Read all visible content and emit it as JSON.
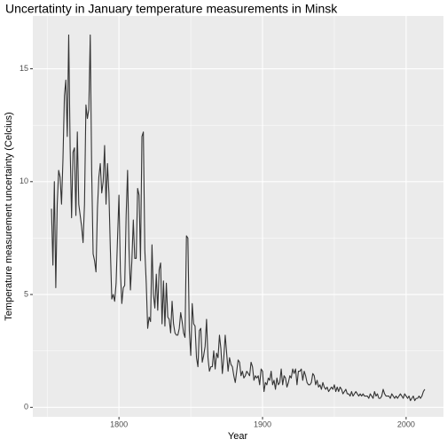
{
  "chart_data": {
    "type": "line",
    "title": "Uncertatinty in January temperature measurements in Minsk",
    "xlabel": "Year",
    "ylabel": "Temperature measurement uncertainty (Celcius)",
    "x": [
      1753,
      1754,
      1755,
      1756,
      1757,
      1758,
      1759,
      1760,
      1761,
      1762,
      1763,
      1764,
      1765,
      1766,
      1767,
      1768,
      1769,
      1770,
      1771,
      1772,
      1773,
      1774,
      1775,
      1776,
      1777,
      1778,
      1779,
      1780,
      1781,
      1782,
      1783,
      1784,
      1785,
      1786,
      1787,
      1788,
      1789,
      1790,
      1791,
      1792,
      1793,
      1794,
      1795,
      1796,
      1797,
      1798,
      1799,
      1800,
      1801,
      1802,
      1803,
      1804,
      1805,
      1806,
      1807,
      1808,
      1809,
      1810,
      1811,
      1812,
      1813,
      1814,
      1815,
      1816,
      1817,
      1818,
      1819,
      1820,
      1821,
      1822,
      1823,
      1824,
      1825,
      1826,
      1827,
      1828,
      1829,
      1830,
      1831,
      1832,
      1833,
      1834,
      1835,
      1836,
      1837,
      1838,
      1839,
      1840,
      1841,
      1842,
      1843,
      1844,
      1845,
      1846,
      1847,
      1848,
      1849,
      1850,
      1851,
      1852,
      1853,
      1854,
      1855,
      1856,
      1857,
      1858,
      1859,
      1860,
      1861,
      1862,
      1863,
      1864,
      1865,
      1866,
      1867,
      1868,
      1869,
      1870,
      1871,
      1872,
      1873,
      1874,
      1875,
      1876,
      1877,
      1878,
      1879,
      1880,
      1881,
      1882,
      1883,
      1884,
      1885,
      1886,
      1887,
      1888,
      1889,
      1890,
      1891,
      1892,
      1893,
      1894,
      1895,
      1896,
      1897,
      1898,
      1899,
      1900,
      1901,
      1902,
      1903,
      1904,
      1905,
      1906,
      1907,
      1908,
      1909,
      1910,
      1911,
      1912,
      1913,
      1914,
      1915,
      1916,
      1917,
      1918,
      1919,
      1920,
      1921,
      1922,
      1923,
      1924,
      1925,
      1926,
      1927,
      1928,
      1929,
      1930,
      1931,
      1932,
      1933,
      1934,
      1935,
      1936,
      1937,
      1938,
      1939,
      1940,
      1941,
      1942,
      1943,
      1944,
      1945,
      1946,
      1947,
      1948,
      1949,
      1950,
      1951,
      1952,
      1953,
      1954,
      1955,
      1956,
      1957,
      1958,
      1959,
      1960,
      1961,
      1962,
      1963,
      1964,
      1965,
      1966,
      1967,
      1968,
      1969,
      1970,
      1971,
      1972,
      1973,
      1974,
      1975,
      1976,
      1977,
      1978,
      1979,
      1980,
      1981,
      1982,
      1983,
      1984,
      1985,
      1986,
      1987,
      1988,
      1989,
      1990,
      1991,
      1992,
      1993,
      1994,
      1995,
      1996,
      1997,
      1998,
      1999,
      2000,
      2001,
      2002,
      2003,
      2004,
      2005,
      2006,
      2007,
      2008,
      2009,
      2010,
      2011,
      2012,
      2013
    ],
    "values": [
      8.8,
      6.3,
      10,
      5.3,
      9,
      10.5,
      10.2,
      9.0,
      11,
      13.8,
      14.5,
      12,
      16.5,
      11.5,
      8.4,
      11.3,
      11.5,
      8.5,
      12.2,
      9,
      8.5,
      8,
      7.3,
      9,
      13.4,
      12.8,
      13.2,
      16.5,
      10.5,
      6.8,
      6.5,
      6,
      8.8,
      10.2,
      10.8,
      9.5,
      10,
      11.6,
      9,
      10.8,
      9.5,
      7,
      4.8,
      5,
      4.7,
      5.5,
      7.5,
      9.4,
      6,
      4.6,
      5.3,
      5.4,
      8.5,
      10.5,
      7,
      5.2,
      6.5,
      8.3,
      6.6,
      6.6,
      9.7,
      9.4,
      6.5,
      12,
      12.2,
      7,
      5.5,
      3.5,
      4,
      3.8,
      7.2,
      5,
      4.4,
      5.9,
      4.3,
      6.1,
      6.4,
      3.7,
      5.6,
      3.6,
      5.5,
      4,
      3.9,
      3.3,
      4.7,
      3.7,
      3.3,
      3.2,
      3.2,
      3.5,
      4.2,
      3.8,
      3.3,
      3.1,
      7.6,
      7.5,
      3.4,
      2.3,
      4.6,
      3.7,
      3.6,
      2.2,
      1.8,
      3.4,
      3.5,
      2.0,
      2.3,
      2.7,
      3.9,
      2.2,
      1.6,
      1.8,
      1.8,
      2.5,
      1.7,
      2.4,
      2.2,
      3.2,
      2.6,
      1.5,
      2.2,
      3.2,
      2.4,
      1.6,
      2.2,
      1.9,
      1.8,
      1.4,
      1.1,
      1.6,
      2.1,
      2.0,
      1.4,
      1.6,
      1.3,
      1.4,
      1.6,
      1.5,
      1.4,
      2.0,
      1.8,
      1.2,
      1.4,
      1.3,
      1.4,
      1.0,
      1.7,
      1.6,
      0.7,
      1.1,
      1.0,
      1.3,
      1.2,
      1.6,
      1.0,
      1.2,
      0.8,
      1.3,
      1.0,
      1.1,
      1.7,
      1.0,
      1.4,
      1.3,
      0.9,
      1.1,
      1.4,
      1.3,
      1.7,
      1.5,
      1.7,
      1.0,
      1.6,
      1.6,
      1.7,
      1.2,
      1.6,
      1.4,
      1.1,
      1.0,
      1.0,
      1.1,
      1.5,
      1.4,
      1.0,
      1.2,
      0.9,
      1.0,
      0.8,
      1.1,
      0.9,
      0.8,
      0.9,
      0.7,
      0.8,
      0.9,
      0.8,
      1.0,
      0.7,
      0.9,
      0.7,
      0.9,
      0.8,
      0.6,
      0.7,
      0.8,
      0.6,
      0.6,
      0.5,
      0.7,
      0.5,
      0.6,
      0.7,
      0.6,
      0.5,
      0.6,
      0.5,
      0.6,
      0.5,
      0.5,
      0.5,
      0.4,
      0.6,
      0.5,
      0.4,
      0.7,
      0.5,
      0.6,
      0.4,
      0.4,
      0.5,
      0.8,
      0.6,
      0.5,
      0.5,
      0.5,
      0.4,
      0.6,
      0.5,
      0.4,
      0.5,
      0.4,
      0.5,
      0.6,
      0.5,
      0.4,
      0.6,
      0.5,
      0.4,
      0.5,
      0.3,
      0.4,
      0.5,
      0.3,
      0.4,
      0.4,
      0.5,
      0.4,
      0.5,
      0.7,
      0.8
    ],
    "color": "#333333",
    "xlim": [
      1740,
      2026
    ],
    "xticks": [
      1800,
      1900,
      2000
    ],
    "xminor": [
      1750,
      1850,
      1950
    ],
    "ylim": [
      -0.42,
      17.34
    ],
    "yticks": [
      0,
      5,
      10,
      15
    ],
    "yminor": [
      2.5,
      7.5,
      12.5
    ],
    "grid": true
  }
}
